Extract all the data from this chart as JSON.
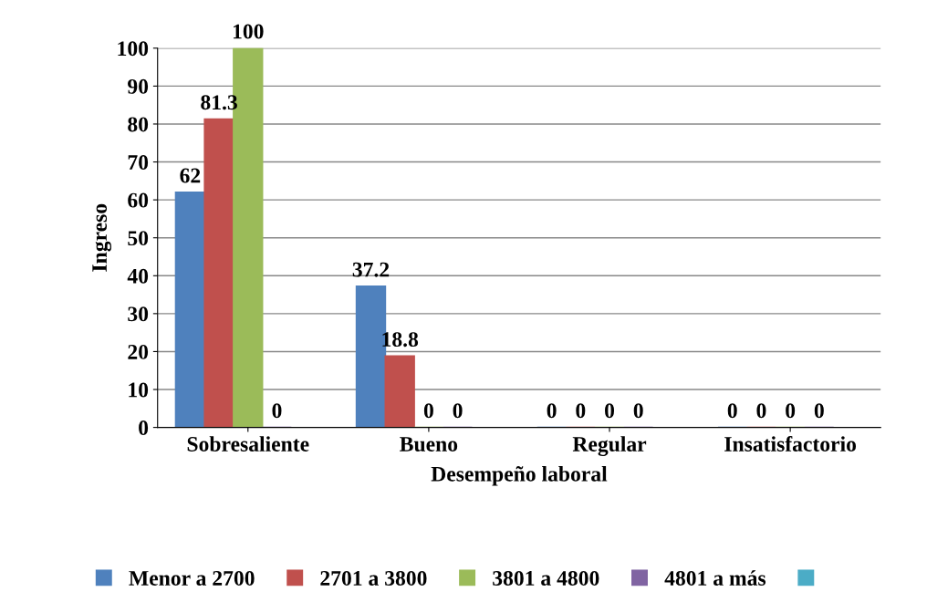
{
  "chart_data": {
    "type": "bar",
    "xlabel": "Desempeño laboral",
    "ylabel": "Ingreso",
    "categories": [
      "Sobresaliente",
      "Bueno",
      "Regular",
      "Insatisfactorio"
    ],
    "series": [
      {
        "name": "Menor a 2700",
        "color": "#4f81bd",
        "values": [
          62,
          37.2,
          0,
          0
        ]
      },
      {
        "name": "2701 a 3800",
        "color": "#c0504d",
        "values": [
          81.3,
          18.8,
          0,
          0
        ]
      },
      {
        "name": "3801 a 4800",
        "color": "#9bbb59",
        "values": [
          100,
          0,
          0,
          0
        ]
      },
      {
        "name": "4801 a más",
        "color": "#8064a2",
        "values": [
          0,
          0,
          0,
          0
        ]
      },
      {
        "color": "#4bacc6",
        "values": [
          null,
          null,
          null,
          null
        ]
      }
    ],
    "ylim": [
      0,
      100
    ],
    "yticks": [
      0,
      10,
      20,
      30,
      40,
      50,
      60,
      70,
      80,
      90,
      100
    ],
    "grid": "y",
    "legend": "bottom",
    "data_labels": true
  }
}
